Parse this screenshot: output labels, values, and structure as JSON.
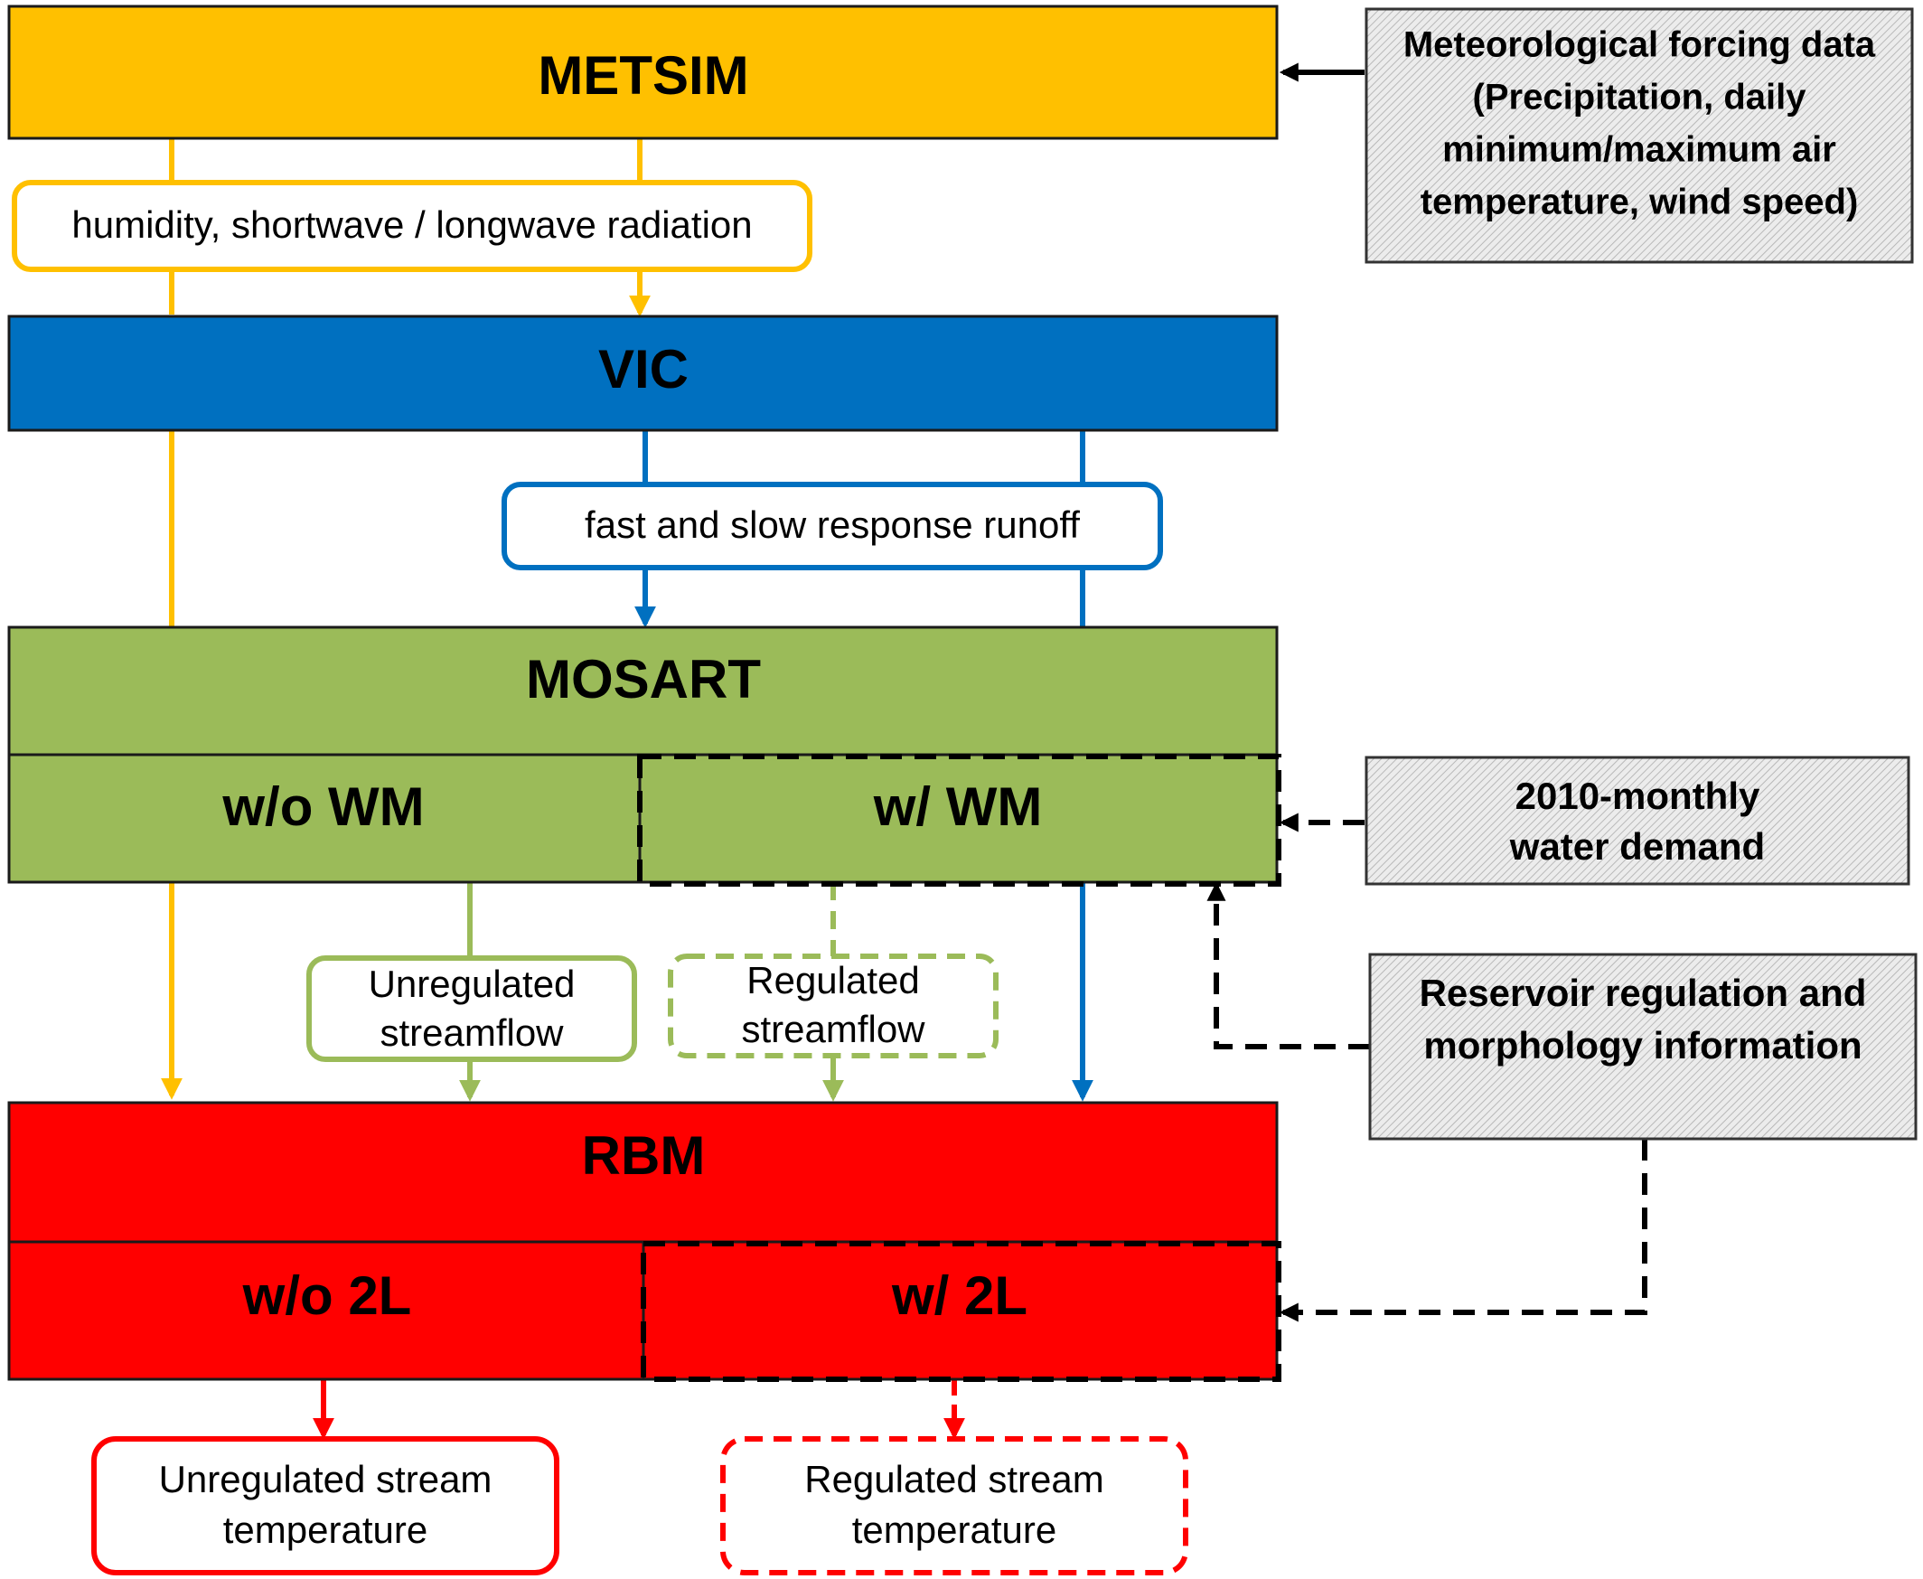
{
  "colors": {
    "metsim": "#FFC000",
    "vic": "#0070C0",
    "mosart": "#9BBB59",
    "rbm": "#FF0000",
    "input_fill": "#E2E2E2",
    "arrow_black": "#000000"
  },
  "models": {
    "metsim": {
      "label": "METSIM"
    },
    "vic": {
      "label": "VIC"
    },
    "mosart": {
      "label": "MOSART",
      "without": "w/o WM",
      "with": "w/ WM"
    },
    "rbm": {
      "label": "RBM",
      "without": "w/o 2L",
      "with": "w/ 2L"
    }
  },
  "flows": {
    "metsim_to_vic": "humidity, shortwave / longwave radiation",
    "vic_to_mosart": "fast and slow response runoff",
    "unregulated_streamflow": [
      "Unregulated",
      "streamflow"
    ],
    "regulated_streamflow": [
      "Regulated",
      "streamflow"
    ],
    "unregulated_temp": [
      "Unregulated stream",
      "temperature"
    ],
    "regulated_temp": [
      "Regulated stream",
      "temperature"
    ]
  },
  "inputs": {
    "forcing": [
      "Meteorological forcing data",
      "(Precipitation, daily",
      "minimum/maximum air",
      "temperature, wind speed)"
    ],
    "demand": [
      "2010-monthly",
      "water demand"
    ],
    "reservoir": [
      "Reservoir regulation and",
      "morphology information"
    ]
  }
}
